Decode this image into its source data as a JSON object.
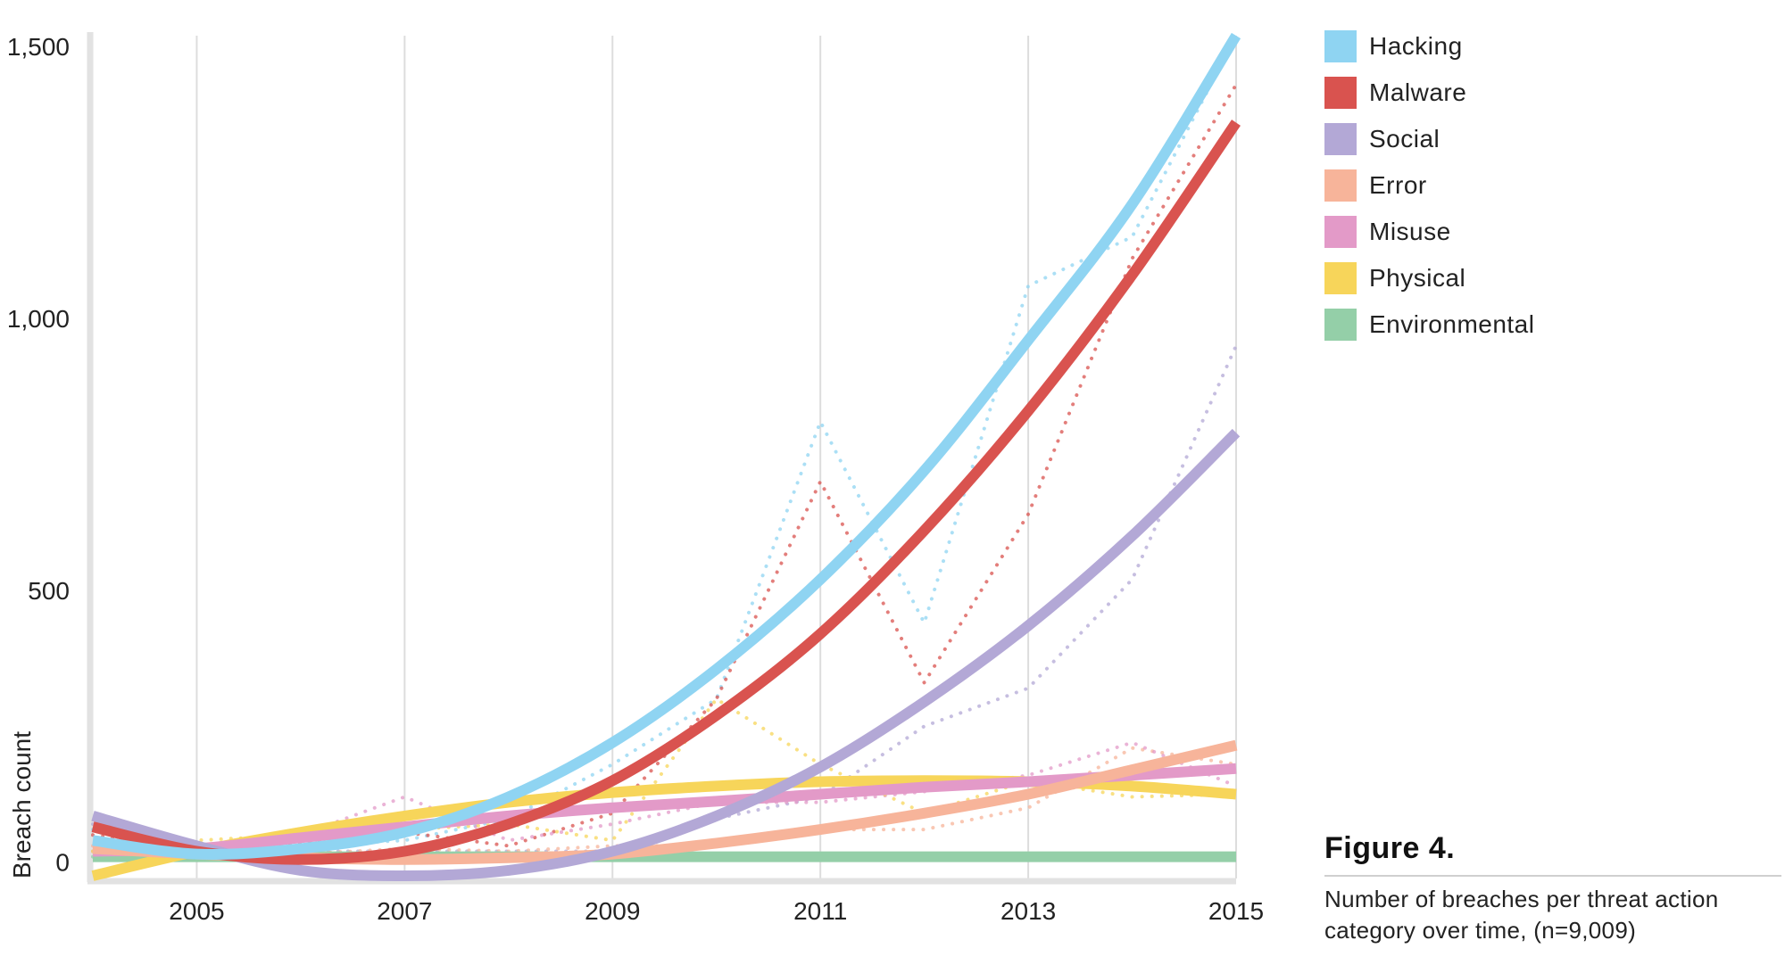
{
  "chart_data": {
    "type": "line",
    "title": "",
    "xlabel": "",
    "ylabel": "Breach count",
    "x": [
      2004,
      2005,
      2006,
      2007,
      2008,
      2009,
      2010,
      2011,
      2012,
      2013,
      2014,
      2015
    ],
    "xticks": [
      "2005",
      "2007",
      "2009",
      "2011",
      "2013",
      "2015"
    ],
    "xtick_values": [
      2005,
      2007,
      2009,
      2011,
      2013,
      2015
    ],
    "yticks": [
      "0",
      "500",
      "1,000",
      "1,500"
    ],
    "ytick_values": [
      0,
      500,
      1000,
      1500
    ],
    "xlim": [
      2004,
      2015
    ],
    "ylim": [
      -30,
      1520
    ],
    "grid": "vertical",
    "legend_position": "right",
    "series": [
      {
        "name": "Hacking",
        "color": "#8fd4f2",
        "trend": [
          40,
          15,
          25,
          55,
          120,
          220,
          355,
          520,
          720,
          960,
          1210,
          1520
        ],
        "actual": [
          60,
          20,
          30,
          40,
          80,
          180,
          300,
          810,
          440,
          1060,
          1150,
          1520
        ]
      },
      {
        "name": "Malware",
        "color": "#d9534f",
        "trend": [
          65,
          20,
          5,
          20,
          70,
          150,
          270,
          420,
          610,
          830,
          1080,
          1360
        ],
        "actual": [
          50,
          25,
          35,
          55,
          30,
          90,
          300,
          700,
          330,
          640,
          1110,
          1430
        ]
      },
      {
        "name": "Social",
        "color": "#b3a8d6",
        "trend": [
          85,
          30,
          -15,
          -25,
          -15,
          20,
          85,
          175,
          295,
          435,
          600,
          790
        ],
        "actual": [
          70,
          30,
          20,
          20,
          20,
          20,
          80,
          120,
          250,
          320,
          520,
          950
        ]
      },
      {
        "name": "Error",
        "color": "#f7b49a",
        "trend": [
          25,
          15,
          8,
          5,
          8,
          15,
          35,
          60,
          90,
          125,
          170,
          215
        ],
        "actual": [
          30,
          20,
          15,
          25,
          20,
          30,
          30,
          60,
          60,
          100,
          210,
          180
        ]
      },
      {
        "name": "Misuse",
        "color": "#e39ac8",
        "trend": [
          20,
          25,
          45,
          65,
          85,
          100,
          112,
          125,
          138,
          148,
          160,
          172
        ],
        "actual": [
          20,
          30,
          50,
          120,
          40,
          70,
          110,
          110,
          130,
          160,
          220,
          140
        ]
      },
      {
        "name": "Physical",
        "color": "#f7d55a",
        "trend": [
          -25,
          20,
          55,
          85,
          110,
          128,
          140,
          148,
          150,
          148,
          140,
          125
        ],
        "actual": [
          20,
          40,
          50,
          60,
          70,
          40,
          300,
          180,
          90,
          150,
          120,
          125
        ]
      },
      {
        "name": "Environmental",
        "color": "#94cfa8",
        "trend": [
          10,
          10,
          10,
          10,
          10,
          10,
          10,
          10,
          10,
          10,
          10,
          10
        ],
        "actual": [
          10,
          10,
          10,
          10,
          10,
          10,
          10,
          10,
          10,
          10,
          10,
          10
        ]
      }
    ]
  },
  "legend": {
    "items": [
      {
        "label": "Hacking",
        "color": "#8fd4f2"
      },
      {
        "label": "Malware",
        "color": "#d9534f"
      },
      {
        "label": "Social",
        "color": "#b3a8d6"
      },
      {
        "label": "Error",
        "color": "#f7b49a"
      },
      {
        "label": "Misuse",
        "color": "#e39ac8"
      },
      {
        "label": "Physical",
        "color": "#f7d55a"
      },
      {
        "label": "Environmental",
        "color": "#94cfa8"
      }
    ]
  },
  "figure": {
    "title": "Figure 4.",
    "caption_line1": "Number of breaches per threat action",
    "caption_line2": "category over time, (n=9,009)"
  },
  "colors": {
    "grid": "#dddddd",
    "axis": "#e2e2e2"
  }
}
